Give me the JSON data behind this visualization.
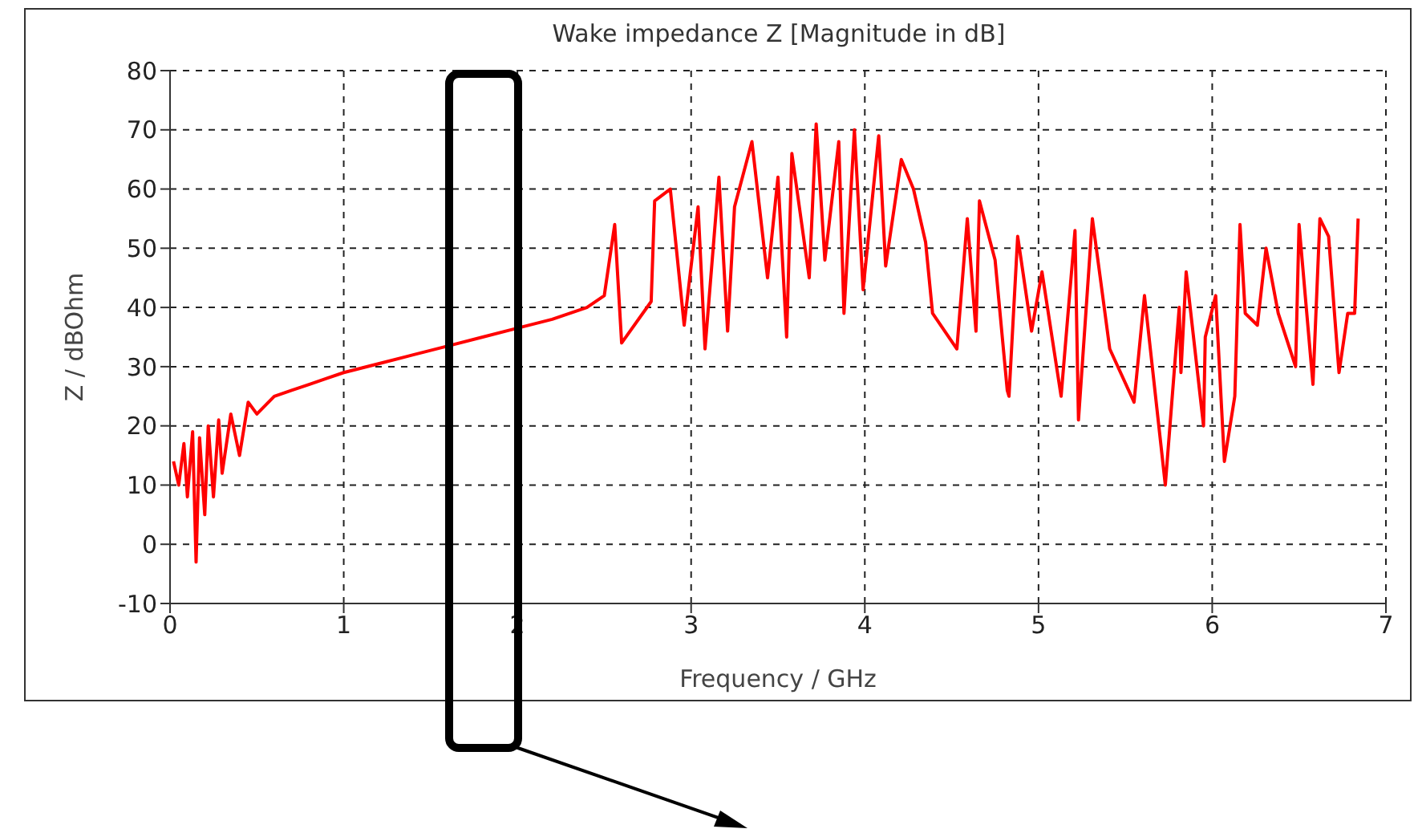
{
  "chart_data": {
    "type": "line",
    "title": "Wake impedance Z [Magnitude in dB]",
    "xlabel": "Frequency / GHz",
    "ylabel": "Z / dBOhm",
    "xlim": [
      0,
      7
    ],
    "xticks": [
      0,
      1,
      2,
      3,
      4,
      5,
      6,
      7
    ],
    "ylim": [
      -10,
      80
    ],
    "yticks": [
      -10,
      0,
      10,
      20,
      30,
      40,
      50,
      60,
      70,
      80
    ],
    "grid": true,
    "series": [
      {
        "color": "#ff0000",
        "x": [
          0.02,
          0.05,
          0.08,
          0.1,
          0.13,
          0.15,
          0.17,
          0.2,
          0.22,
          0.25,
          0.28,
          0.3,
          0.35,
          0.4,
          0.45,
          0.5,
          0.6,
          0.7,
          0.8,
          0.9,
          1.0,
          1.2,
          1.4,
          1.6,
          1.8,
          2.0,
          2.2,
          2.4,
          2.5,
          2.56,
          2.6,
          2.77,
          2.79,
          2.88,
          2.96,
          3.04,
          3.08,
          3.16,
          3.21,
          3.25,
          3.35,
          3.44,
          3.5,
          3.55,
          3.58,
          3.68,
          3.72,
          3.77,
          3.85,
          3.88,
          3.94,
          3.99,
          4.08,
          4.12,
          4.21,
          4.28,
          4.35,
          4.39,
          4.53,
          4.59,
          4.64,
          4.66,
          4.75,
          4.82,
          4.83,
          4.88,
          4.96,
          5.02,
          5.13,
          5.21,
          5.23,
          5.31,
          5.36,
          5.41,
          5.55,
          5.61,
          5.73,
          5.81,
          5.82,
          5.85,
          5.95,
          5.96,
          6.02,
          6.07,
          6.13,
          6.16,
          6.19,
          6.26,
          6.31,
          6.38,
          6.48,
          6.5,
          6.58,
          6.62,
          6.67,
          6.73,
          6.78,
          6.82,
          6.84
        ],
        "values": [
          14,
          10,
          17,
          8,
          19,
          -3,
          18,
          5,
          20,
          8,
          21,
          12,
          22,
          15,
          24,
          22,
          25,
          26,
          27,
          28,
          29,
          30.5,
          32,
          33.5,
          35,
          36.5,
          38,
          40,
          42,
          54,
          34,
          41,
          58,
          60,
          37,
          57,
          33,
          62,
          36,
          57,
          68,
          45,
          62,
          35,
          66,
          45,
          71,
          48,
          68,
          39,
          70,
          43,
          69,
          47,
          65,
          60,
          51,
          39,
          33,
          55,
          36,
          58,
          48,
          26,
          25,
          52,
          36,
          46,
          25,
          53,
          21,
          55,
          44,
          33,
          24,
          42,
          10,
          40,
          29,
          46,
          20,
          35,
          42,
          14,
          25,
          54,
          39,
          37,
          50,
          39,
          30,
          54,
          27,
          55,
          52,
          29,
          39,
          39,
          55
        ]
      }
    ]
  }
}
